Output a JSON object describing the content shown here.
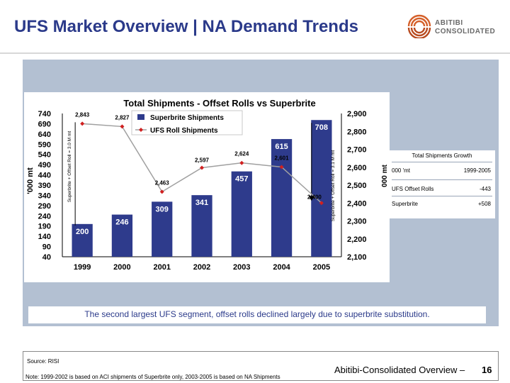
{
  "slide": {
    "title": "UFS Market Overview | NA Demand Trends",
    "logo_line1": "ABITIBI",
    "logo_line2": "CONSOLIDATED",
    "caption": "The second largest UFS segment, offset rolls declined largely due to superbrite substitution.",
    "source": "Source:  RISI",
    "note": "Note:  1999-2002 is based on ACI shipments of Superbrite only,  2003-2005 is based on NA Shipments",
    "footer_name": "Abitibi-Consolidated Overview –",
    "page_number": "16"
  },
  "growth_table": {
    "title": "Total Shipments Growth",
    "header_left": "000 'mt",
    "header_right": "1999-2005",
    "rows": [
      {
        "label": "UFS Offset Rolls",
        "value": "-443"
      },
      {
        "label": "Superbrite",
        "value": "+508"
      }
    ]
  },
  "chart_data": {
    "type": "bar+line",
    "title": "Total Shipments - Offset Rolls vs Superbrite",
    "categories": [
      "1999",
      "2000",
      "2001",
      "2002",
      "2003",
      "2004",
      "2005"
    ],
    "series": [
      {
        "name": "Superbrite Shipments",
        "type": "bar",
        "axis": "left",
        "color": "#2e3b8c",
        "values": [
          200,
          246,
          309,
          341,
          457,
          615,
          708
        ],
        "labels": [
          "200",
          "246",
          "309",
          "341",
          "457",
          "615",
          "708"
        ]
      },
      {
        "name": "UFS Roll Shipments",
        "type": "line",
        "axis": "right",
        "color": "#d02020",
        "values": [
          2843,
          2827,
          2463,
          2597,
          2624,
          2601,
          2400
        ],
        "labels": [
          "2,843",
          "2,827",
          "2,463",
          "2,597",
          "2,624",
          "2,601",
          "2,400"
        ]
      }
    ],
    "left_axis": {
      "label": "'000 mt",
      "ticks": [
        "740",
        "690",
        "640",
        "590",
        "540",
        "490",
        "440",
        "390",
        "340",
        "290",
        "240",
        "190",
        "140",
        "90",
        "40"
      ],
      "ylim": [
        40,
        740
      ]
    },
    "right_axis": {
      "label": "000 mt",
      "ticks": [
        "2,900",
        "2,800",
        "2,700",
        "2,600",
        "2,500",
        "2,400",
        "2,300",
        "2,200",
        "2,100"
      ],
      "ylim": [
        2100,
        2900
      ]
    },
    "annotations": {
      "left_span": "Superbrite + Offset Roll = 3.0 M mt",
      "right_span": "Superbrite + Offset Roll = 3.1 M mt"
    },
    "legend": "top-center"
  }
}
